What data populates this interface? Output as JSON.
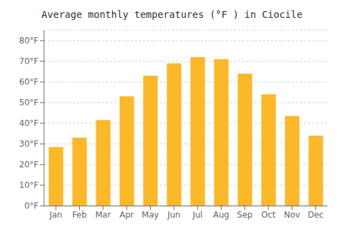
{
  "chart_data": {
    "type": "bar",
    "title": "Average monthly temperatures (°F ) in Ciocile",
    "categories": [
      "Jan",
      "Feb",
      "Mar",
      "Apr",
      "May",
      "Jun",
      "Jul",
      "Aug",
      "Sep",
      "Oct",
      "Nov",
      "Dec"
    ],
    "values": [
      28.5,
      33.0,
      41.5,
      53.0,
      63.0,
      69.0,
      72.0,
      71.0,
      64.0,
      54.0,
      43.5,
      34.0
    ],
    "color": "#FDB827",
    "ylim": [
      0,
      85
    ],
    "yticks": [
      {
        "value": 0,
        "label": "0°F"
      },
      {
        "value": 10,
        "label": "10°F"
      },
      {
        "value": 20,
        "label": "20°F"
      },
      {
        "value": 30,
        "label": "30°F"
      },
      {
        "value": 40,
        "label": "40°F"
      },
      {
        "value": 50,
        "label": "50°F"
      },
      {
        "value": 60,
        "label": "60°F"
      },
      {
        "value": 70,
        "label": "70°F"
      },
      {
        "value": 80,
        "label": "80°F"
      }
    ],
    "grid": true
  }
}
